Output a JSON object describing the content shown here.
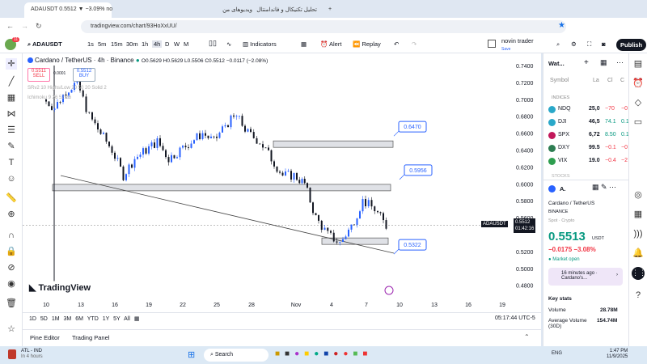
{
  "browser": {
    "tabs": [
      {
        "label": "ADAUSDT 0.5512 ▼ −3.09% no"
      },
      {
        "label": "ویدیوهای من"
      },
      {
        "label": "تحلیل تکنیکال و فاندامنتال"
      }
    ],
    "url": "tradingview.com/chart/93HoXxUU/"
  },
  "toolbar": {
    "symbol": "ADAUSDT",
    "intervals": [
      "1s",
      "5m",
      "15m",
      "30m",
      "1h",
      "4h",
      "D",
      "W",
      "M"
    ],
    "active_interval": "4h",
    "indicators": "Indicators",
    "alert": "Alert",
    "replay": "Replay",
    "layout_name": "novin trader",
    "layout_sub": "Save",
    "publish": "Publish",
    "avatar_badge": "11"
  },
  "chart": {
    "title": "Cardano / TetherUS · 4h · Binance",
    "ohlc": "O0.5629 H0.5629 L0.5506 C0.5512 −0.0117 (−2.08%)",
    "sell_price": "0.5511",
    "sell_label": "SELL",
    "spread": "0.0001",
    "buy_price": "0.5512",
    "buy_label": "BUY",
    "indicator1": "SRv2 10 Highs/Low 20 50 20 Solid 2",
    "indicator2": "Ichimoku 9 26 52 26",
    "logo": "TradingView",
    "price_ticks": [
      "0.7400",
      "0.7200",
      "0.7000",
      "0.6800",
      "0.6600",
      "0.6400",
      "0.6200",
      "0.6000",
      "0.5800",
      "0.5600",
      "0.5200",
      "0.5000",
      "0.4800"
    ],
    "date_ticks": [
      "10",
      "13",
      "16",
      "19",
      "22",
      "25",
      "28",
      "Nov",
      "4",
      "7",
      "10",
      "13",
      "16",
      "19"
    ],
    "last_symbol": "ADAUSDT",
    "last_price": "0.5512",
    "countdown": "01:42:16",
    "zones": [
      {
        "label": "0.6470",
        "price": 0.647
      },
      {
        "label": "0.5956",
        "price": 0.5956
      },
      {
        "label": "0.5322",
        "price": 0.5322
      }
    ],
    "daily_closes": [
      0.7,
      0.69,
      0.71,
      0.72,
      0.68,
      0.66,
      0.64,
      0.61,
      0.63,
      0.64,
      0.65,
      0.63,
      0.64,
      0.65,
      0.66,
      0.65,
      0.67,
      0.68,
      0.66,
      0.65,
      0.63,
      0.61,
      0.61,
      0.6,
      0.56,
      0.54,
      0.53,
      0.55,
      0.58,
      0.57,
      0.55
    ],
    "up_color": "#2962ff",
    "down_color": "#131722"
  },
  "bottom": {
    "ranges": [
      "1D",
      "5D",
      "1M",
      "3M",
      "6M",
      "YTD",
      "1Y",
      "5Y",
      "All"
    ],
    "clock": "05:17:44 UTC-5",
    "tabs": [
      "Pine Editor",
      "Trading Panel"
    ]
  },
  "watchlist": {
    "title": "Wat...",
    "cols": [
      "Symbol",
      "La",
      "Cl",
      "C"
    ],
    "section": "INDICES",
    "items": [
      {
        "sym": "NDQ",
        "last": "25,0",
        "chg": "−70",
        "pct": "−0",
        "color": "#2aa8c9",
        "neg": true
      },
      {
        "sym": "DJI",
        "last": "46,5",
        "chg": "74.1",
        "pct": "0.1",
        "color": "#2aa8c9",
        "neg": false
      },
      {
        "sym": "SPX",
        "last": "6,72",
        "chg": "8.50",
        "pct": "0.1",
        "color": "#c2185b",
        "neg": false
      },
      {
        "sym": "DXY",
        "last": "99.5",
        "chg": "−0.1",
        "pct": "−0",
        "color": "#2e7d52",
        "neg": true
      },
      {
        "sym": "VIX",
        "last": "19.0",
        "chg": "−0.4",
        "pct": "−2",
        "color": "#2e9e4f",
        "neg": true
      }
    ],
    "section2": "STOCKS"
  },
  "details": {
    "sym": "A.",
    "name": "Cardano / TetherUS",
    "exchange": "BINANCE",
    "type": "Spot · Crypto",
    "price": "0.5513",
    "currency": "USDT",
    "change": "−0.0175",
    "change_pct": "−3.08%",
    "status": "Market open",
    "news": "16 minutes ago · Cardano's...",
    "key_stats": "Key stats",
    "volume_label": "Volume",
    "volume": "28.78M",
    "avg_label": "Average Volume (30D)",
    "avg": "154.74M"
  },
  "taskbar": {
    "weather": "ATL - IND",
    "weather_sub": "In 4 hours",
    "search": "Search",
    "lang": "ENG",
    "time": "1:47 PM",
    "date": "11/9/2025"
  }
}
